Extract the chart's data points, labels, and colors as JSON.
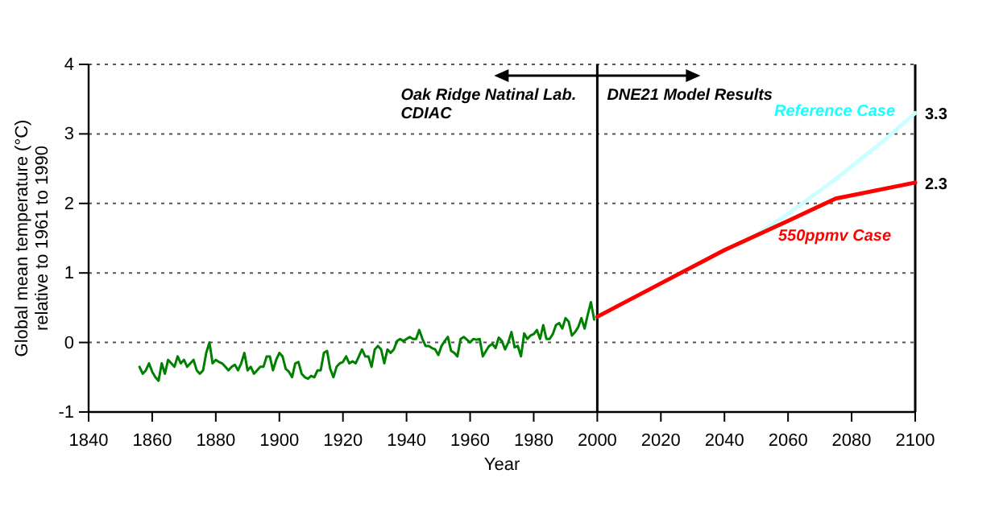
{
  "chart_data": {
    "type": "line",
    "xlabel": "Year",
    "ylabel": "Global mean temperature (°C)\nrelative to 1961 to 1990",
    "xlim": [
      1840,
      2100
    ],
    "xticks": [
      1840,
      1860,
      1880,
      1900,
      1920,
      1940,
      1960,
      1980,
      2000,
      2020,
      2040,
      2060,
      2080,
      2100
    ],
    "ylim": [
      -1,
      4
    ],
    "yticks": [
      -1,
      0,
      1,
      2,
      3,
      4
    ],
    "grid": "y",
    "marker": "none",
    "line_style": "solid",
    "series": [
      {
        "color": "#008000",
        "x": [
          1856,
          1857,
          1858,
          1859,
          1860,
          1861,
          1862,
          1863,
          1864,
          1865,
          1866,
          1867,
          1868,
          1869,
          1870,
          1871,
          1872,
          1873,
          1874,
          1875,
          1876,
          1877,
          1878,
          1879,
          1880,
          1881,
          1882,
          1883,
          1884,
          1885,
          1886,
          1887,
          1888,
          1889,
          1890,
          1891,
          1892,
          1893,
          1894,
          1895,
          1896,
          1897,
          1898,
          1899,
          1900,
          1901,
          1902,
          1903,
          1904,
          1905,
          1906,
          1907,
          1908,
          1909,
          1910,
          1911,
          1912,
          1913,
          1914,
          1915,
          1916,
          1917,
          1918,
          1919,
          1920,
          1921,
          1922,
          1923,
          1924,
          1925,
          1926,
          1927,
          1928,
          1929,
          1930,
          1931,
          1932,
          1933,
          1934,
          1935,
          1936,
          1937,
          1938,
          1939,
          1940,
          1941,
          1942,
          1943,
          1944,
          1945,
          1946,
          1947,
          1948,
          1949,
          1950,
          1951,
          1952,
          1953,
          1954,
          1955,
          1956,
          1957,
          1958,
          1959,
          1960,
          1961,
          1962,
          1963,
          1964,
          1965,
          1966,
          1967,
          1968,
          1969,
          1970,
          1971,
          1972,
          1973,
          1974,
          1975,
          1976,
          1977,
          1978,
          1979,
          1980,
          1981,
          1982,
          1983,
          1984,
          1985,
          1986,
          1987,
          1988,
          1989,
          1990,
          1991,
          1992,
          1993,
          1994,
          1995,
          1996,
          1997,
          1998,
          1999
        ],
        "values": [
          -0.35,
          -0.45,
          -0.4,
          -0.3,
          -0.42,
          -0.5,
          -0.55,
          -0.3,
          -0.45,
          -0.25,
          -0.3,
          -0.35,
          -0.2,
          -0.3,
          -0.25,
          -0.35,
          -0.3,
          -0.25,
          -0.4,
          -0.45,
          -0.4,
          -0.15,
          0.0,
          -0.3,
          -0.25,
          -0.28,
          -0.3,
          -0.35,
          -0.4,
          -0.35,
          -0.32,
          -0.4,
          -0.3,
          -0.15,
          -0.4,
          -0.35,
          -0.45,
          -0.4,
          -0.35,
          -0.35,
          -0.2,
          -0.2,
          -0.4,
          -0.25,
          -0.15,
          -0.2,
          -0.38,
          -0.42,
          -0.5,
          -0.3,
          -0.28,
          -0.45,
          -0.5,
          -0.52,
          -0.48,
          -0.5,
          -0.4,
          -0.4,
          -0.15,
          -0.12,
          -0.38,
          -0.5,
          -0.35,
          -0.3,
          -0.28,
          -0.2,
          -0.3,
          -0.27,
          -0.3,
          -0.2,
          -0.1,
          -0.2,
          -0.2,
          -0.35,
          -0.1,
          -0.05,
          -0.1,
          -0.3,
          -0.1,
          -0.15,
          -0.1,
          0.02,
          0.05,
          0.02,
          0.05,
          0.08,
          0.05,
          0.05,
          0.18,
          0.05,
          -0.05,
          -0.05,
          -0.08,
          -0.1,
          -0.18,
          -0.05,
          0.02,
          0.08,
          -0.12,
          -0.15,
          -0.2,
          0.05,
          0.08,
          0.04,
          0.0,
          0.05,
          0.04,
          0.05,
          -0.2,
          -0.12,
          -0.05,
          -0.02,
          -0.08,
          0.07,
          0.02,
          -0.1,
          0.0,
          0.15,
          -0.07,
          -0.05,
          -0.2,
          0.13,
          0.05,
          0.1,
          0.12,
          0.18,
          0.05,
          0.25,
          0.05,
          0.05,
          0.12,
          0.25,
          0.28,
          0.2,
          0.35,
          0.3,
          0.1,
          0.15,
          0.22,
          0.35,
          0.2,
          0.4,
          0.58,
          0.33
        ]
      },
      {
        "name": "Reference Case",
        "color": "#ccffff",
        "x": [
          2050,
          2060,
          2075,
          2090,
          2100
        ],
        "values": [
          1.55,
          1.85,
          2.35,
          2.9,
          3.3
        ]
      },
      {
        "name": "550ppmv Case",
        "color": "#ff0000",
        "x": [
          2000,
          2020,
          2040,
          2060,
          2075,
          2100
        ],
        "values": [
          0.37,
          0.85,
          1.33,
          1.75,
          2.07,
          2.3
        ]
      }
    ],
    "ref_lines": [
      {
        "axis": "x",
        "value": 2000,
        "color": "#000000",
        "line_style": "solid"
      }
    ],
    "annotations": [
      "Oak Ridge Natinal Lab.\nCDIAC",
      "DNE21 Model Results",
      {
        "text": "3.3",
        "x": 2100,
        "y": 3.3
      },
      {
        "text": "2.3",
        "x": 2100,
        "y": 2.3
      }
    ]
  }
}
